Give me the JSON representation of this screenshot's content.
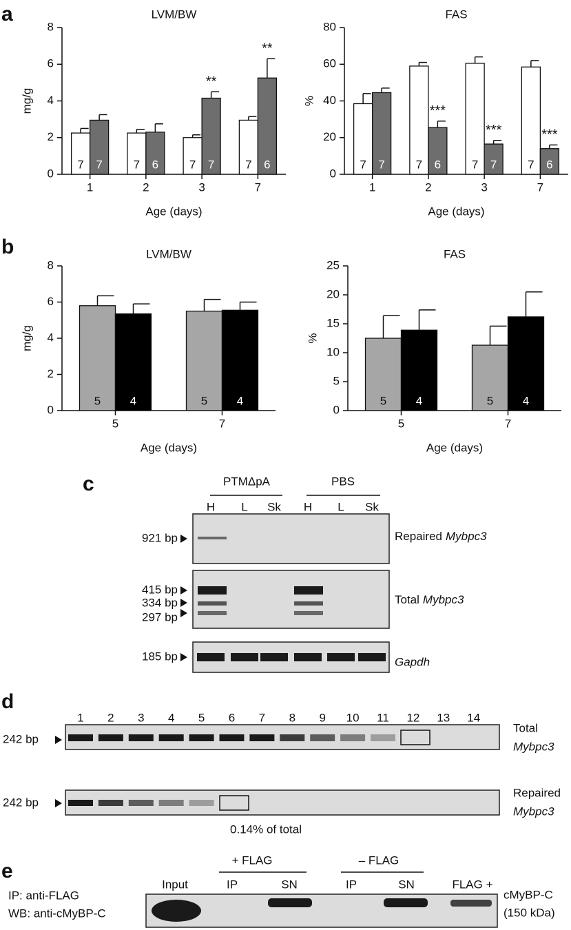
{
  "panel_labels": [
    "a",
    "b",
    "c",
    "d",
    "e"
  ],
  "chart_data": [
    {
      "type": "bar",
      "title": "LVM/BW",
      "ylabel": "mg/g",
      "xlabel": "Age (days)",
      "categories": [
        "1",
        "2",
        "3",
        "7"
      ],
      "ylim": [
        0,
        8
      ],
      "yticks": [
        0,
        2,
        4,
        6,
        8
      ],
      "series": [
        {
          "color": "#ffffff",
          "values": [
            2.25,
            2.25,
            2.0,
            2.95
          ],
          "errors": [
            0.25,
            0.2,
            0.15,
            0.2
          ],
          "n": [
            7,
            7,
            7,
            7
          ]
        },
        {
          "color": "#6e6e6e",
          "values": [
            2.95,
            2.3,
            4.15,
            5.25
          ],
          "errors": [
            0.3,
            0.45,
            0.35,
            1.05
          ],
          "n": [
            7,
            6,
            7,
            6
          ],
          "annotations": [
            null,
            null,
            "**",
            "**"
          ]
        }
      ]
    },
    {
      "type": "bar",
      "title": "FAS",
      "ylabel": "%",
      "xlabel": "Age (days)",
      "categories": [
        "1",
        "2",
        "3",
        "7"
      ],
      "ylim": [
        0,
        80
      ],
      "yticks": [
        0,
        20,
        40,
        60,
        80
      ],
      "series": [
        {
          "color": "#ffffff",
          "values": [
            38.5,
            59,
            60.5,
            58.5
          ],
          "errors": [
            5.5,
            2,
            3.5,
            3.5
          ],
          "n": [
            7,
            7,
            7,
            7
          ]
        },
        {
          "color": "#6e6e6e",
          "values": [
            44.5,
            25.5,
            16.5,
            14
          ],
          "errors": [
            2.5,
            3.5,
            2,
            2
          ],
          "n": [
            7,
            6,
            7,
            6
          ],
          "annotations": [
            null,
            "***",
            "***",
            "***"
          ]
        }
      ]
    },
    {
      "type": "bar",
      "title": "LVM/BW",
      "ylabel": "mg/g",
      "xlabel": "Age (days)",
      "categories": [
        "5",
        "7"
      ],
      "ylim": [
        0,
        8
      ],
      "yticks": [
        0,
        2,
        4,
        6,
        8
      ],
      "series": [
        {
          "color": "#a6a6a6",
          "values": [
            5.8,
            5.5
          ],
          "errors": [
            0.55,
            0.65
          ],
          "n": [
            5,
            5
          ]
        },
        {
          "color": "#000000",
          "values": [
            5.35,
            5.55
          ],
          "errors": [
            0.55,
            0.45
          ],
          "n": [
            4,
            4
          ]
        }
      ]
    },
    {
      "type": "bar",
      "title": "FAS",
      "ylabel": "%",
      "xlabel": "Age (days)",
      "categories": [
        "5",
        "7"
      ],
      "ylim": [
        0,
        25
      ],
      "yticks": [
        0,
        5,
        10,
        15,
        20,
        25
      ],
      "series": [
        {
          "color": "#a6a6a6",
          "values": [
            12.5,
            11.3
          ],
          "errors": [
            3.9,
            3.3
          ],
          "n": [
            5,
            5
          ]
        },
        {
          "color": "#000000",
          "values": [
            13.9,
            16.2
          ],
          "errors": [
            3.5,
            4.3
          ],
          "n": [
            4,
            4
          ]
        }
      ]
    }
  ],
  "gel_c": {
    "groups": [
      "PTMΔpA",
      "PBS"
    ],
    "lanes": [
      "H",
      "L",
      "Sk",
      "H",
      "L",
      "Sk"
    ],
    "rows": [
      {
        "markers": [
          "921 bp"
        ],
        "label": "Repaired",
        "gene": "Mybpc3"
      },
      {
        "markers": [
          "415 bp",
          "334 bp",
          "297 bp"
        ],
        "label": "Total",
        "gene": "Mybpc3"
      },
      {
        "markers": [
          "185 bp"
        ],
        "gene": "Gapdh"
      }
    ]
  },
  "gel_d": {
    "lanes": [
      "1",
      "2",
      "3",
      "4",
      "5",
      "6",
      "7",
      "8",
      "9",
      "10",
      "11",
      "12",
      "13",
      "14"
    ],
    "rows": [
      {
        "marker": "242 bp",
        "label": "Total",
        "gene": "Mybpc3"
      },
      {
        "marker": "242 bp",
        "label": "Repaired",
        "gene": "Mybpc3"
      }
    ],
    "note": "0.14% of total"
  },
  "gel_e": {
    "groups": [
      "+ FLAG",
      "– FLAG"
    ],
    "lanes": [
      "Input",
      "IP",
      "SN",
      "IP",
      "SN",
      "FLAG +"
    ],
    "left_labels": [
      "IP: anti-FLAG",
      "WB: anti-cMyBP-C"
    ],
    "right_labels": [
      "cMyBP-C",
      "(150 kDa)"
    ]
  }
}
